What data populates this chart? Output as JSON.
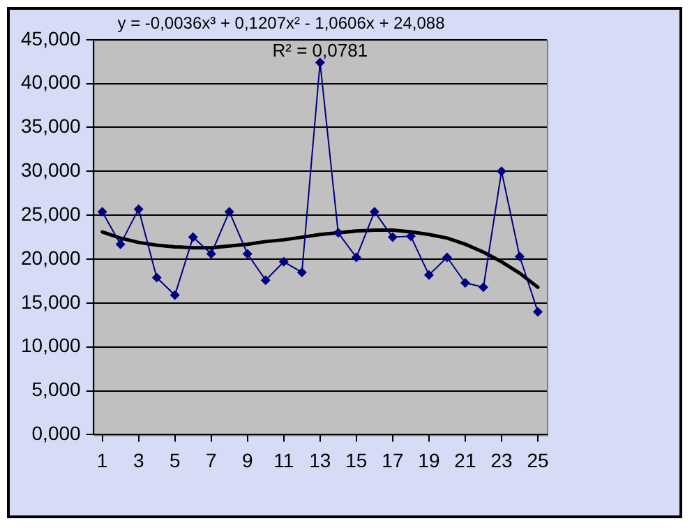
{
  "chart_data": {
    "type": "line",
    "title": "y = -0,0036x³ + 0,1207x² - 1,0606x + 24,088",
    "annotations": [
      "R² = 0,0781"
    ],
    "x": [
      1,
      2,
      3,
      4,
      5,
      6,
      7,
      8,
      9,
      10,
      11,
      12,
      13,
      14,
      15,
      16,
      17,
      18,
      19,
      20,
      21,
      22,
      23,
      24,
      25
    ],
    "xlim": [
      0.5,
      25.5
    ],
    "xticks": [
      1,
      3,
      5,
      7,
      9,
      11,
      13,
      15,
      17,
      19,
      21,
      23,
      25
    ],
    "series": [
      {
        "color": "#000080",
        "marker": "diamond",
        "values": [
          25.4,
          21.7,
          25.7,
          17.9,
          15.9,
          22.5,
          20.6,
          25.4,
          20.6,
          17.6,
          19.7,
          18.5,
          42.4,
          23.0,
          20.2,
          25.4,
          22.5,
          22.6,
          18.2,
          20.2,
          17.3,
          16.8,
          30.0,
          20.3,
          14.0
        ]
      },
      {
        "type": "line",
        "color": "#000000",
        "marker": "none",
        "values": [
          23.1,
          22.4,
          21.9,
          21.6,
          21.4,
          21.3,
          21.3,
          21.5,
          21.7,
          22.0,
          22.2,
          22.5,
          22.8,
          23.0,
          23.2,
          23.3,
          23.3,
          23.1,
          22.8,
          22.4,
          21.7,
          20.8,
          19.7,
          18.4,
          16.8
        ]
      }
    ],
    "ylim": [
      0,
      45
    ],
    "yticks": [
      {
        "value": 0,
        "label": "0,000"
      },
      {
        "value": 5,
        "label": "5,000"
      },
      {
        "value": 10,
        "label": "10,000"
      },
      {
        "value": 15,
        "label": "15,000"
      },
      {
        "value": 20,
        "label": "20,000"
      },
      {
        "value": 25,
        "label": "25,000"
      },
      {
        "value": 30,
        "label": "30,000"
      },
      {
        "value": 35,
        "label": "35,000"
      },
      {
        "value": 40,
        "label": "40,000"
      },
      {
        "value": 45,
        "label": "45,000"
      }
    ],
    "grid": "y"
  }
}
